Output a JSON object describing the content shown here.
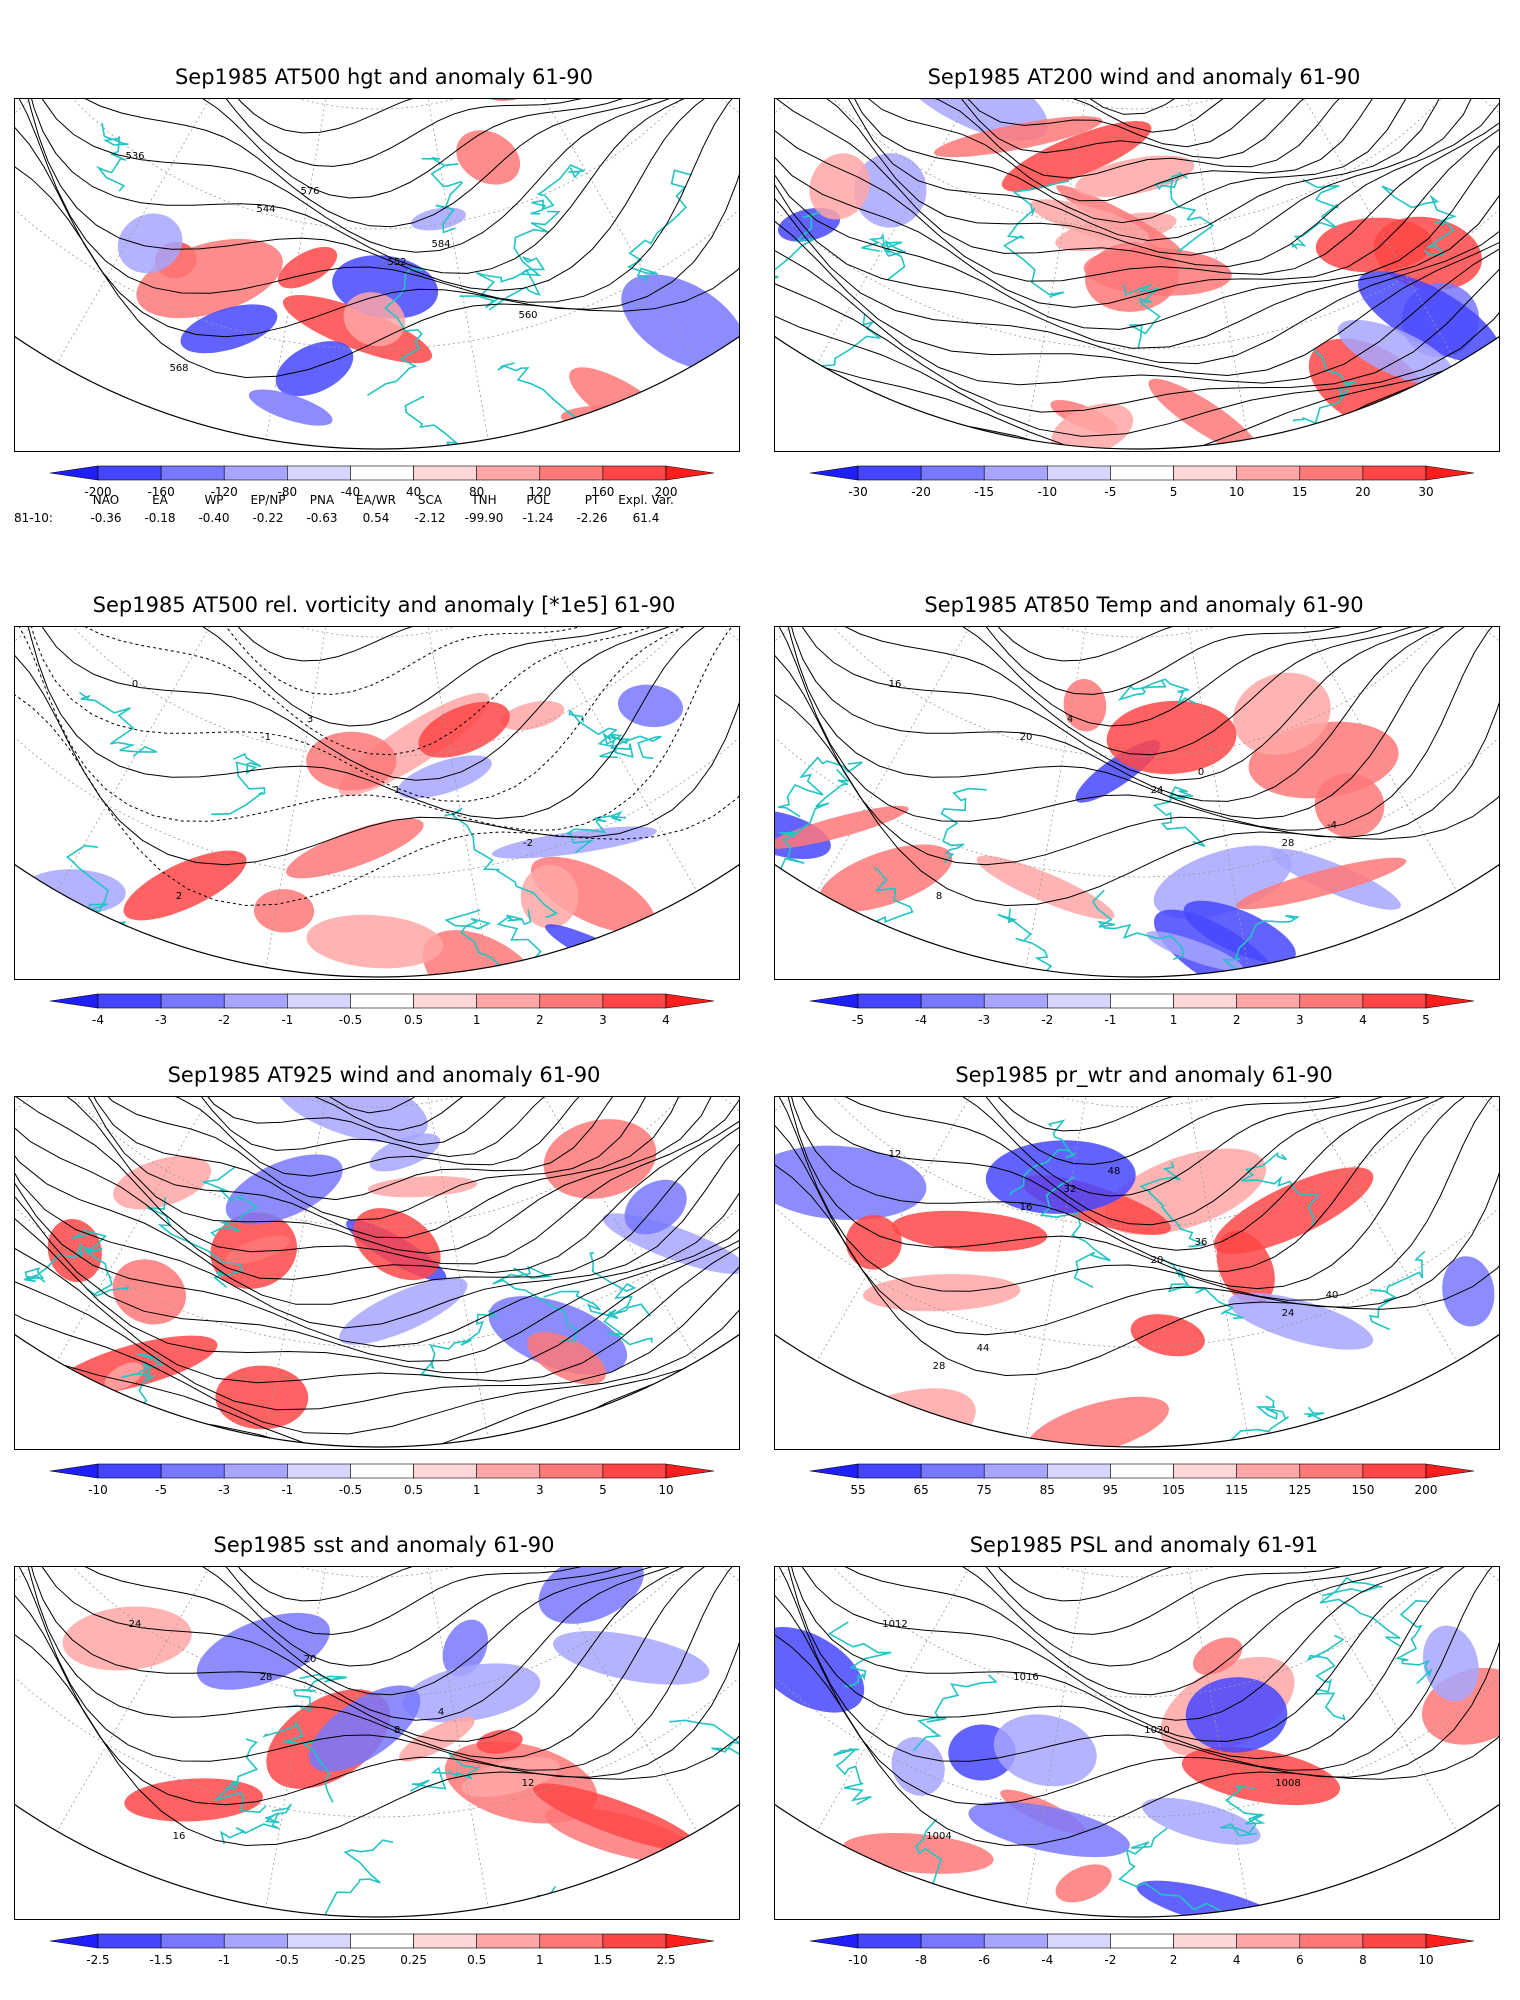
{
  "panels": [
    {
      "id": "p1",
      "title": "Sep1985 AT500 hgt and anomaly 61-90",
      "field": "contour",
      "labels": [
        "536",
        "544",
        "552",
        "560",
        "568",
        "576",
        "584"
      ],
      "colorbar": [
        "-200",
        "-160",
        "-120",
        "-80",
        "-40",
        "40",
        "80",
        "120",
        "160",
        "200"
      ]
    },
    {
      "id": "p2",
      "title": "Sep1985 AT200 wind and anomaly 61-90",
      "field": "stream",
      "labels": [],
      "colorbar": [
        "-30",
        "-20",
        "-15",
        "-10",
        "-5",
        "5",
        "10",
        "15",
        "20",
        "30"
      ]
    },
    {
      "id": "p3",
      "title": "Sep1985 AT500 rel. vorticity and anomaly [*1e5] 61-90",
      "field": "contour",
      "labels": [
        "0",
        "-1",
        "1",
        "-2",
        "2",
        "3"
      ],
      "colorbar": [
        "-4",
        "-3",
        "-2",
        "-1",
        "-0.5",
        "0.5",
        "1",
        "2",
        "3",
        "4"
      ]
    },
    {
      "id": "p4",
      "title": "Sep1985 AT850 Temp and anomaly 61-90",
      "field": "contour",
      "labels": [
        "16",
        "20",
        "24",
        "28",
        "8",
        "4",
        "0",
        "-4"
      ],
      "colorbar": [
        "-5",
        "-4",
        "-3",
        "-2",
        "-1",
        "1",
        "2",
        "3",
        "4",
        "5"
      ]
    },
    {
      "id": "p5",
      "title": "Sep1985 AT925 wind and anomaly 61-90",
      "field": "stream",
      "labels": [],
      "colorbar": [
        "-10",
        "-5",
        "-3",
        "-1",
        "-0.5",
        "0.5",
        "1",
        "3",
        "5",
        "10"
      ]
    },
    {
      "id": "p6",
      "title": "Sep1985 pr_wtr and anomaly 61-90",
      "field": "contour",
      "labels": [
        "12",
        "16",
        "20",
        "24",
        "28",
        "32",
        "36",
        "40",
        "44",
        "48"
      ],
      "colorbar": [
        "55",
        "65",
        "75",
        "85",
        "95",
        "105",
        "115",
        "125",
        "150",
        "200"
      ]
    },
    {
      "id": "p7",
      "title": "Sep1985 sst and anomaly 61-90",
      "field": "contour",
      "labels": [
        "24",
        "28",
        "8",
        "12",
        "16",
        "20",
        "4"
      ],
      "colorbar": [
        "-2.5",
        "-1.5",
        "-1",
        "-0.5",
        "-0.25",
        "0.25",
        "0.5",
        "1",
        "1.5",
        "2.5"
      ]
    },
    {
      "id": "p8",
      "title": "Sep1985 PSL and anomaly 61-91",
      "field": "contour",
      "labels": [
        "1012",
        "1016",
        "1020",
        "1008",
        "1004"
      ],
      "colorbar": [
        "-10",
        "-8",
        "-6",
        "-4",
        "-2",
        "2",
        "4",
        "6",
        "8",
        "10"
      ]
    }
  ],
  "indices": {
    "headers": [
      "NAO",
      "EA",
      "WP",
      "EP/NP",
      "PNA",
      "EA/WR",
      "SCA",
      "TNH",
      "POL",
      "PT",
      "Expl. Var."
    ],
    "row_label": "81-10:",
    "values": [
      "-0.36",
      "-0.18",
      "-0.40",
      "-0.22",
      "-0.63",
      "0.54",
      "-2.12",
      "-99.90",
      "-1.24",
      "-2.26",
      "61.4"
    ]
  },
  "colors": {
    "palette": [
      "#1e1eff",
      "#4646ff",
      "#7878ff",
      "#a6a6ff",
      "#d6d6ff",
      "#ffffff",
      "#ffd6d6",
      "#ffa6a6",
      "#ff7878",
      "#ff4646",
      "#ff1e1e"
    ],
    "coast": "#22c4c4",
    "contour": "#000000",
    "grid": "#9a9a9a"
  }
}
